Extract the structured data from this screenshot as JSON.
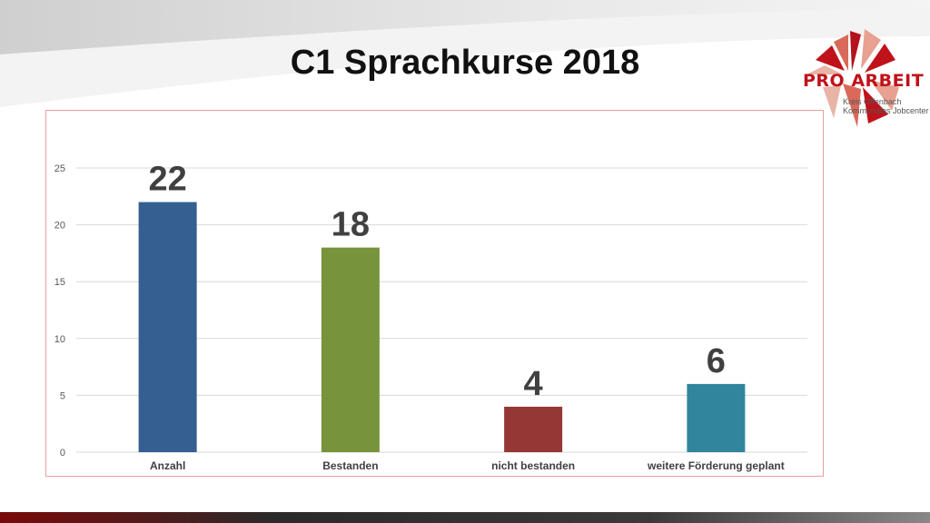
{
  "title": "C1 Sprachkurse 2018",
  "logo": {
    "name": "PRO ARBEIT",
    "line1": "Kreis Offenbach",
    "line2": "Kommunales Jobcenter"
  },
  "colors": {
    "accent": "#c0121a",
    "frame": "#e6a09d"
  },
  "chart_data": {
    "type": "bar",
    "categories": [
      "Anzahl",
      "Bestanden",
      "nicht bestanden",
      "weitere Förderung geplant"
    ],
    "values": [
      22,
      18,
      4,
      6
    ],
    "data_labels": [
      "22",
      "18",
      "4",
      "6"
    ],
    "colors": [
      "#355f91",
      "#77933c",
      "#953735",
      "#31859c"
    ],
    "yticks": [
      "0",
      "5",
      "10",
      "15",
      "20",
      "25"
    ],
    "ylim": [
      0,
      25
    ],
    "grid": true,
    "legend": "none",
    "title": "",
    "xlabel": "",
    "ylabel": ""
  }
}
